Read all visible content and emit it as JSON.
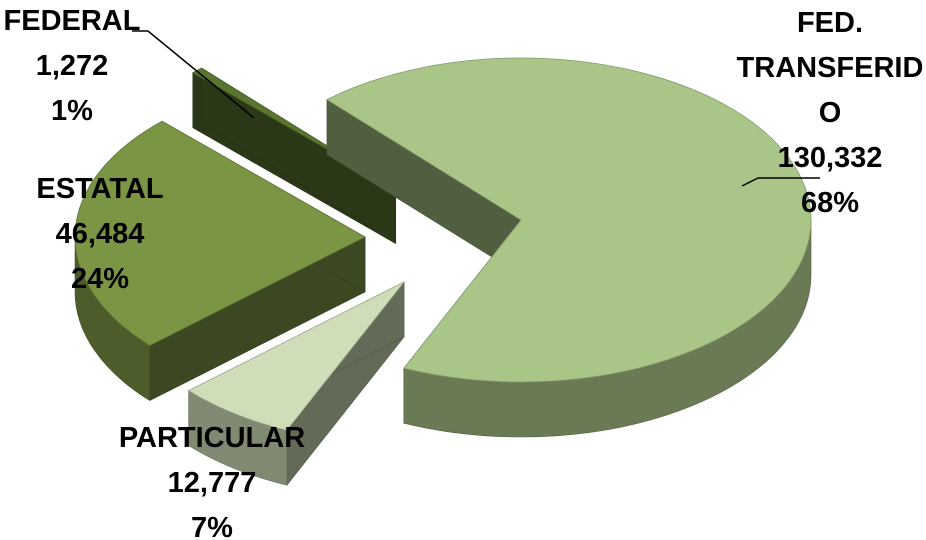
{
  "chart_data": {
    "type": "pie",
    "title": "",
    "three_d": true,
    "exploded": true,
    "legend": "none",
    "slices": [
      {
        "name": "FED. TRANSFERIDO",
        "label_lines": [
          "FED.",
          "TRANSFERID",
          "O"
        ],
        "value": 130332,
        "value_label": "130,332",
        "percent_label": "68%",
        "color": "#a9c588"
      },
      {
        "name": "PARTICULAR",
        "label_lines": [
          "PARTICULAR"
        ],
        "value": 12777,
        "value_label": "12,777",
        "percent_label": "7%",
        "color": "#cfddb8"
      },
      {
        "name": "ESTATAL",
        "label_lines": [
          "ESTATAL"
        ],
        "value": 46484,
        "value_label": "46,484",
        "percent_label": "24%",
        "color": "#7a9544"
      },
      {
        "name": "FEDERAL",
        "label_lines": [
          "FEDERAL"
        ],
        "value": 1272,
        "value_label": "1,272",
        "percent_label": "1%",
        "color": "#5a7530"
      }
    ]
  }
}
